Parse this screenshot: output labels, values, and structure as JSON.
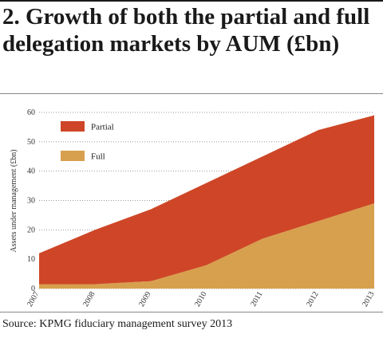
{
  "title": "2. Growth of both the partial and full delegation markets by AUM (£bn)",
  "source": "Source: KPMG fiduciary management survey 2013",
  "chart_data": {
    "type": "area",
    "stacked": true,
    "x": [
      "2007",
      "2008",
      "2009",
      "2010",
      "2011",
      "2012",
      "2013"
    ],
    "ylabel": "Assets under management (£bn)",
    "ylim": [
      0,
      60
    ],
    "yticks": [
      0,
      10,
      20,
      30,
      40,
      50,
      60
    ],
    "grid": "horizontal dotted",
    "legend_position": "top-left",
    "series": [
      {
        "name": "Full",
        "color": "#D7A04E",
        "values": [
          1.5,
          1.5,
          2.5,
          8,
          17,
          23,
          29
        ]
      },
      {
        "name": "Partial",
        "color": "#CE4627",
        "values": [
          10.5,
          18.5,
          24.5,
          28,
          28,
          31,
          30
        ]
      }
    ],
    "legend": [
      {
        "name": "Partial",
        "color": "#CE4627"
      },
      {
        "name": "Full",
        "color": "#D7A04E"
      }
    ]
  }
}
